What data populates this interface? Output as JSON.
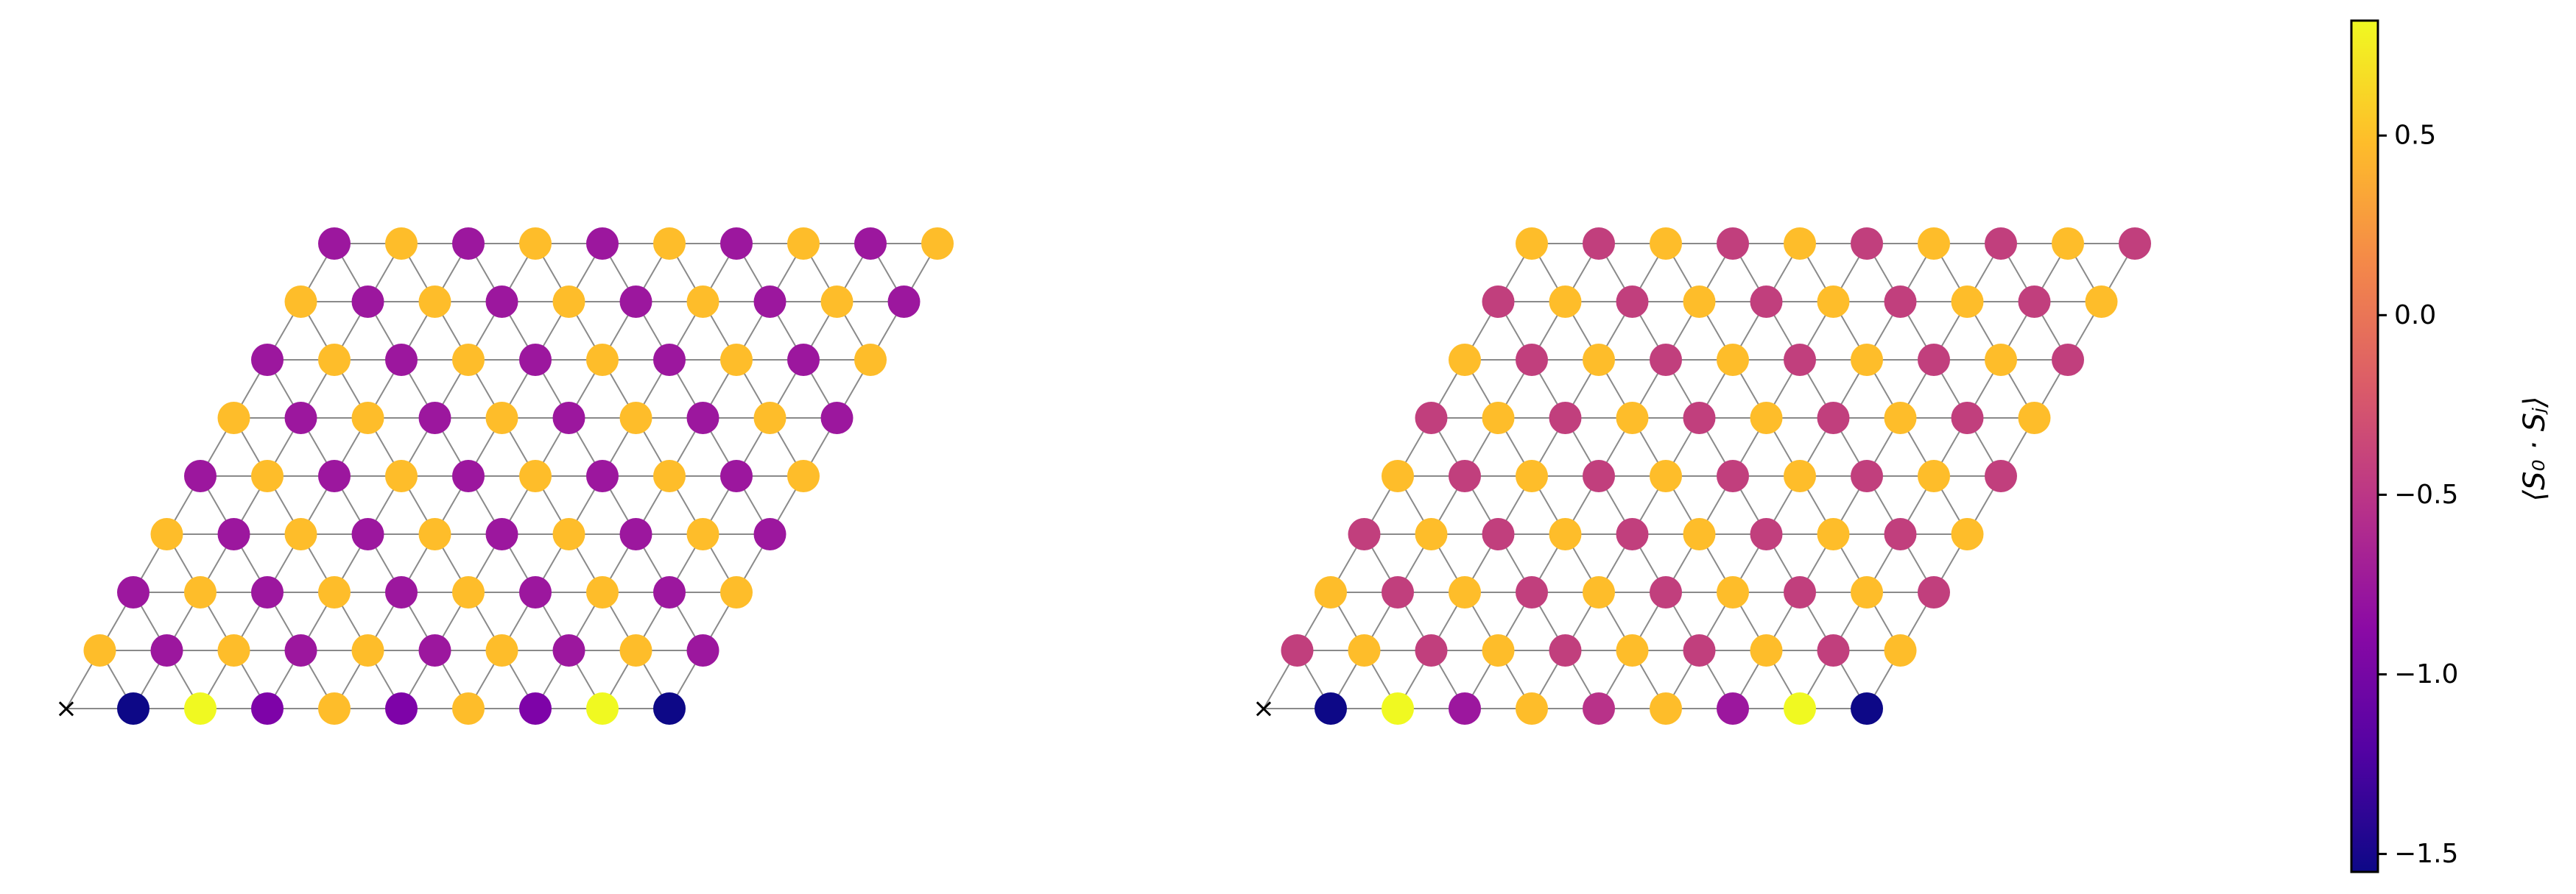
{
  "figure": {
    "description": "two-panel-triangular-lattice-spin-correlations",
    "panels": [
      {
        "name": "left-panel",
        "lattice": {
          "cols": 10,
          "rows": 9
        },
        "reference_marker": "×",
        "colors": {
          "row0": [
            "#0d0887",
            "#f0f921",
            "#7e03a8",
            "#febd2a",
            "#7e03a8",
            "#febd2a",
            "#7e03a8",
            "#f0f921",
            "#0d0887"
          ],
          "upper_alternating": [
            "#febd2a",
            "#9c179e"
          ]
        }
      },
      {
        "name": "right-panel",
        "lattice": {
          "cols": 10,
          "rows": 9
        },
        "reference_marker": "×",
        "colors": {
          "row0": [
            "#0d0887",
            "#f0f921",
            "#9c179e",
            "#febd2a",
            "#b83289",
            "#febd2a",
            "#9c179e",
            "#f0f921",
            "#0d0887"
          ],
          "upper_alternating": [
            "#c13f7d",
            "#febd2a"
          ]
        }
      }
    ],
    "colorbar": {
      "label": "⟨S₀ · Sⱼ⟩",
      "min": -1.55,
      "max": 0.82,
      "ticks": [
        "0.5",
        "0.0",
        "−0.5",
        "−1.0",
        "−1.5"
      ],
      "tick_values": [
        0.5,
        0.0,
        -0.5,
        -1.0,
        -1.5
      ],
      "colormap": "plasma",
      "colormap_stops": [
        "#0d0887",
        "#5302a3",
        "#8b0aa5",
        "#b83289",
        "#db5c68",
        "#f48849",
        "#febd2a",
        "#f0f921"
      ]
    }
  }
}
